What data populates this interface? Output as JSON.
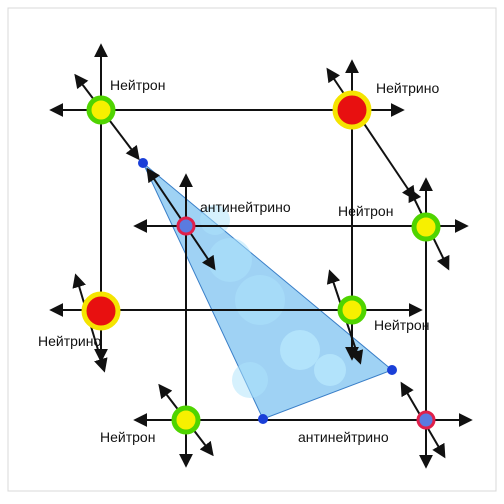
{
  "nodes": [
    {
      "label": "Нейтрон"
    },
    {
      "label": "Нейтрино"
    },
    {
      "label": "антинейтрино"
    },
    {
      "label": "Нейтрон"
    },
    {
      "label": "Нейтрино"
    },
    {
      "label": "Нейтрон"
    },
    {
      "label": "Нейтрон"
    },
    {
      "label": "антинейтрино"
    }
  ]
}
